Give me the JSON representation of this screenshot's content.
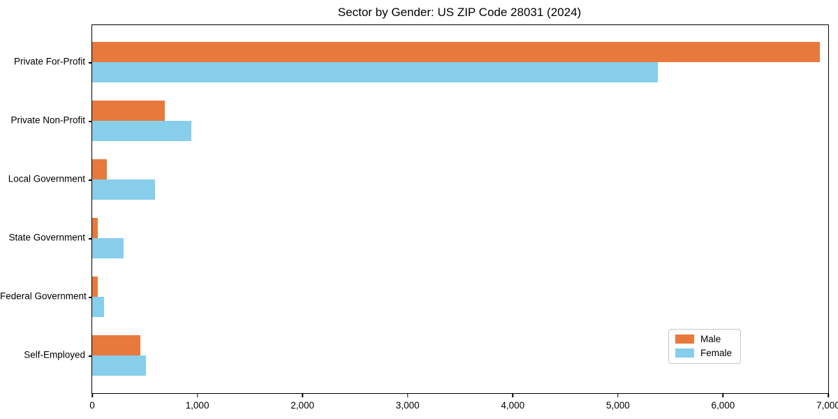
{
  "title": "Sector by Gender: US ZIP Code 28031 (2024)",
  "chart_data": {
    "type": "bar",
    "orientation": "horizontal",
    "title": "Sector by Gender: US ZIP Code 28031 (2024)",
    "categories": [
      "Private For-Profit",
      "Private Non-Profit",
      "Local Government",
      "State Government",
      "Federal Government",
      "Self-Employed"
    ],
    "series": [
      {
        "name": "Male",
        "color": "#E8793D",
        "values": [
          6920,
          690,
          140,
          50,
          50,
          455
        ]
      },
      {
        "name": "Female",
        "color": "#87CEEB",
        "values": [
          5380,
          945,
          595,
          300,
          110,
          510
        ]
      }
    ],
    "xlabel": "",
    "ylabel": "",
    "xlim": [
      0,
      7000
    ],
    "xticks": [
      0,
      1000,
      2000,
      3000,
      4000,
      5000,
      6000,
      7000
    ],
    "xtick_labels": [
      "0",
      "1,000",
      "2,000",
      "3,000",
      "4,000",
      "5,000",
      "6,000",
      "7,000"
    ],
    "grid": false,
    "legend_position": "lower right"
  },
  "colors": {
    "background": "#ffffff",
    "axis": "#000000",
    "male": "#E8793D",
    "female": "#87CEEB",
    "legend_border": "#c6c6c6"
  }
}
